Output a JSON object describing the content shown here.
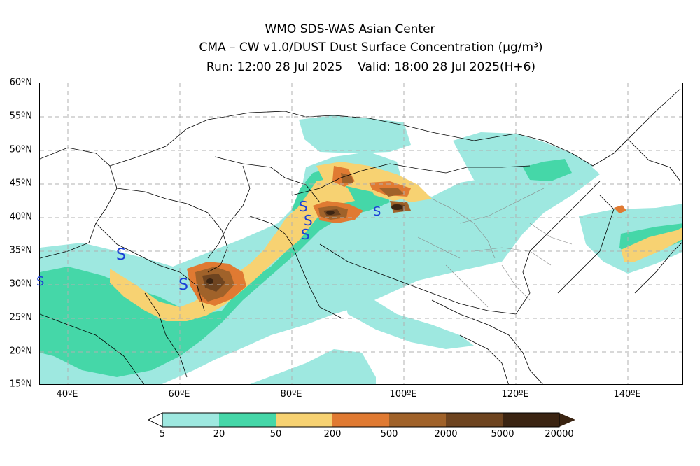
{
  "title": {
    "line1": "WMO SDS-WAS Asian Center",
    "line2": "CMA – CW v1.0/DUST Dust Surface Concentration (μg/m³)",
    "run": "Run: 12:00 28 Jul 2025",
    "valid": "Valid: 18:00 28 Jul 2025(H+6)"
  },
  "map": {
    "lon_range": [
      35,
      150
    ],
    "lat_range": [
      15,
      60
    ],
    "lat_labels": [
      "60ºN",
      "55ºN",
      "50ºN",
      "45ºN",
      "40ºN",
      "35ºN",
      "30ºN",
      "25ºN",
      "20ºN",
      "15ºN"
    ],
    "lon_labels": [
      "40ºE",
      "60ºE",
      "80ºE",
      "100ºE",
      "120ºE",
      "140ºE"
    ],
    "gridlines": "dashed gray",
    "symbol_glyph": "S",
    "symbol_color": "#1a3fd6"
  },
  "legend": {
    "labels": [
      "5",
      "20",
      "50",
      "200",
      "500",
      "2000",
      "5000",
      "20000"
    ],
    "colors": [
      "#9ee8e0",
      "#45d7a8",
      "#f7d272",
      "#e07a32",
      "#a0622a",
      "#6e4420",
      "#3b2412"
    ]
  },
  "colors": {
    "land": "#ffffff",
    "border": "#000000",
    "province": "#888888"
  }
}
